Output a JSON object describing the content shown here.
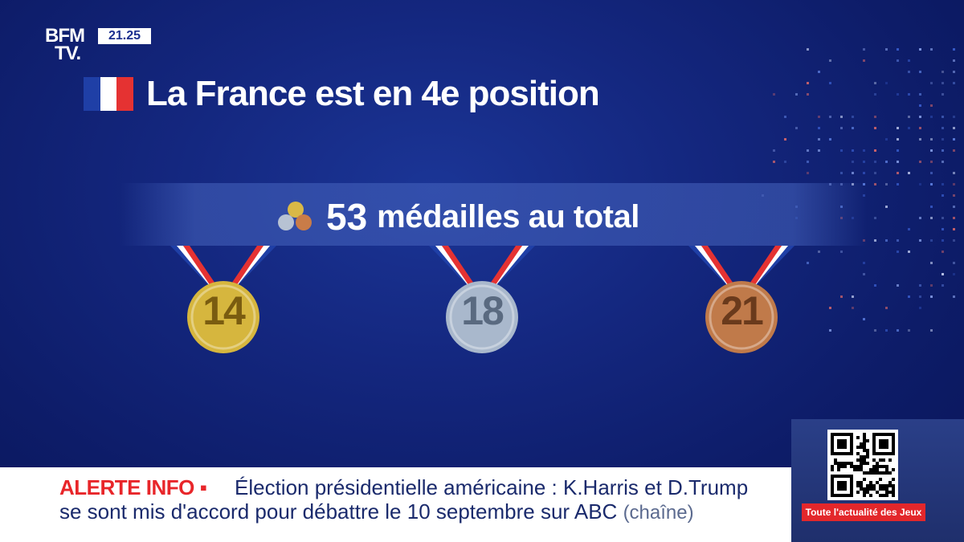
{
  "channel": {
    "logo_top": "BFM",
    "logo_bottom": "TV.",
    "clock": "21.25"
  },
  "headline": {
    "title": "La France est en 4e position",
    "flag_colors": [
      "#1f3fa6",
      "#ffffff",
      "#e53232"
    ]
  },
  "summary": {
    "total": "53",
    "label": "médailles au total",
    "icon": "medals-trio-icon"
  },
  "medals": [
    {
      "name": "gold",
      "count": "14",
      "color": "#d6b63e",
      "text_color": "#7a5c10"
    },
    {
      "name": "silver",
      "count": "18",
      "color": "#a9b8cc",
      "text_color": "#5a6a80"
    },
    {
      "name": "bronze",
      "count": "21",
      "color": "#c07a4a",
      "text_color": "#6a3a1c"
    }
  ],
  "ticker": {
    "alert_label": "ALERTE INFO",
    "line1": "Élection présidentielle américaine : K.Harris et D.Trump",
    "line2": "se sont mis d'accord pour débattre le 10 septembre sur ABC",
    "source": "(chaîne)"
  },
  "promo": {
    "qr_icon": "qr-code-icon",
    "caption": "Toute l'actualité des Jeux"
  },
  "colors": {
    "accent_red": "#e8262a",
    "ticker_text": "#1a2a6c",
    "background": "#14277f"
  }
}
